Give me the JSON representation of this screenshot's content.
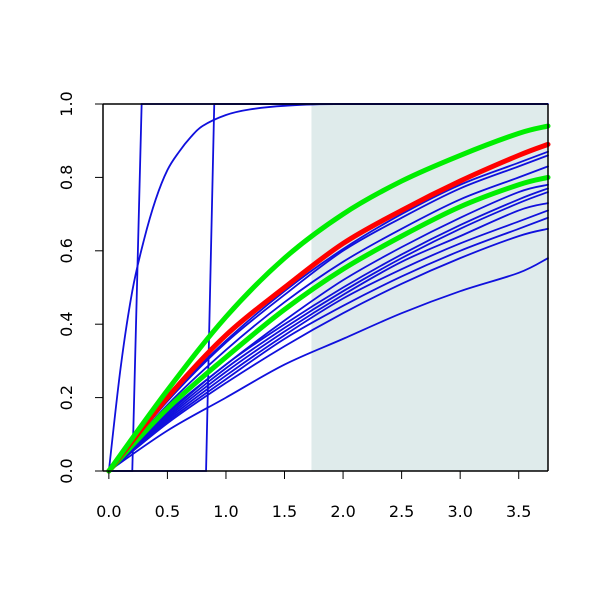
{
  "chart_data": {
    "type": "line",
    "title": "",
    "xlabel": "",
    "ylabel": "",
    "xlim": [
      -0.05,
      3.75
    ],
    "ylim": [
      0,
      1
    ],
    "x_ticks": [
      0,
      0.5,
      1,
      1.5,
      2,
      2.5,
      3,
      3.5
    ],
    "x_tick_labels": [
      "0.0",
      "0.5",
      "1.0",
      "1.5",
      "2.0",
      "2.5",
      "3.0",
      "3.5"
    ],
    "y_ticks": [
      0,
      0.2,
      0.4,
      0.6,
      0.8,
      1
    ],
    "y_tick_labels": [
      "0.0",
      "0.2",
      "0.4",
      "0.6",
      "0.8",
      "1.0"
    ],
    "grid": false,
    "shaded_region": {
      "x_from": 1.73,
      "x_to": 3.75,
      "y_from": 0,
      "y_to": 1,
      "color": "#dfebeb"
    },
    "colors": {
      "blue": "#1010dd",
      "red": "#ff0000",
      "green": "#00ee00"
    },
    "step_curves": [
      {
        "color": "blue",
        "step_x": 0.2,
        "rise_end_x": 0.28
      },
      {
        "color": "blue",
        "step_x": 0.83,
        "rise_end_x": 0.9
      }
    ],
    "series": [
      {
        "color": "blue",
        "width": 1.8,
        "x": [
          0,
          0.1,
          0.2,
          0.3,
          0.4,
          0.5,
          0.6,
          0.7,
          0.8,
          1.0,
          1.2,
          1.5,
          2.0,
          3.75
        ],
        "values": [
          0,
          0.28,
          0.49,
          0.63,
          0.74,
          0.82,
          0.87,
          0.91,
          0.94,
          0.97,
          0.985,
          0.995,
          1.0,
          1.0
        ]
      },
      {
        "color": "blue",
        "width": 1.8,
        "x": [
          0,
          0.5,
          1,
          1.5,
          2,
          2.5,
          3,
          3.5,
          3.75
        ],
        "values": [
          0,
          0.11,
          0.2,
          0.29,
          0.36,
          0.43,
          0.49,
          0.54,
          0.58
        ]
      },
      {
        "color": "blue",
        "width": 1.8,
        "x": [
          0,
          0.5,
          1,
          1.5,
          2,
          2.5,
          3,
          3.5,
          3.75
        ],
        "values": [
          0,
          0.13,
          0.24,
          0.34,
          0.43,
          0.51,
          0.58,
          0.64,
          0.66
        ]
      },
      {
        "color": "blue",
        "width": 1.8,
        "x": [
          0,
          0.5,
          1,
          1.5,
          2,
          2.5,
          3,
          3.5,
          3.75
        ],
        "values": [
          0,
          0.135,
          0.25,
          0.36,
          0.45,
          0.53,
          0.6,
          0.66,
          0.69
        ]
      },
      {
        "color": "blue",
        "width": 1.8,
        "x": [
          0,
          0.5,
          1,
          1.5,
          2,
          2.5,
          3,
          3.5,
          3.75
        ],
        "values": [
          0,
          0.14,
          0.26,
          0.37,
          0.47,
          0.55,
          0.62,
          0.68,
          0.71
        ]
      },
      {
        "color": "blue",
        "width": 1.8,
        "x": [
          0,
          0.5,
          1,
          1.5,
          2,
          2.5,
          3,
          3.5,
          3.75
        ],
        "values": [
          0,
          0.145,
          0.27,
          0.38,
          0.48,
          0.57,
          0.64,
          0.71,
          0.73
        ]
      },
      {
        "color": "blue",
        "width": 1.8,
        "x": [
          0,
          0.5,
          1,
          1.5,
          2,
          2.5,
          3,
          3.5,
          3.75
        ],
        "values": [
          0,
          0.15,
          0.28,
          0.39,
          0.49,
          0.58,
          0.66,
          0.73,
          0.76
        ]
      },
      {
        "color": "blue",
        "width": 1.8,
        "x": [
          0,
          0.5,
          1,
          1.5,
          2,
          2.5,
          3,
          3.5,
          3.75
        ],
        "values": [
          0,
          0.155,
          0.29,
          0.4,
          0.5,
          0.59,
          0.67,
          0.74,
          0.77
        ]
      },
      {
        "color": "blue",
        "width": 1.8,
        "x": [
          0,
          0.5,
          1,
          1.5,
          2,
          2.5,
          3,
          3.5,
          3.75
        ],
        "values": [
          0,
          0.16,
          0.29,
          0.41,
          0.52,
          0.61,
          0.69,
          0.76,
          0.78
        ]
      },
      {
        "color": "blue",
        "width": 1.8,
        "x": [
          0,
          0.5,
          1,
          1.5,
          2,
          2.5,
          3,
          3.5,
          3.75
        ],
        "values": [
          0,
          0.18,
          0.33,
          0.46,
          0.57,
          0.66,
          0.74,
          0.8,
          0.83
        ]
      },
      {
        "color": "blue",
        "width": 1.8,
        "x": [
          0,
          0.5,
          1,
          1.5,
          2,
          2.5,
          3,
          3.5,
          3.75
        ],
        "values": [
          0,
          0.19,
          0.35,
          0.48,
          0.6,
          0.69,
          0.77,
          0.83,
          0.86
        ]
      },
      {
        "color": "blue",
        "width": 1.8,
        "x": [
          0,
          0.5,
          1,
          1.5,
          2,
          2.5,
          3,
          3.5,
          3.75
        ],
        "values": [
          0,
          0.195,
          0.355,
          0.49,
          0.605,
          0.7,
          0.78,
          0.84,
          0.87
        ]
      },
      {
        "color": "green",
        "width": 5,
        "x": [
          0,
          0.5,
          1,
          1.5,
          2,
          2.5,
          3,
          3.5,
          3.75
        ],
        "values": [
          0,
          0.17,
          0.31,
          0.44,
          0.55,
          0.64,
          0.72,
          0.78,
          0.8
        ]
      },
      {
        "color": "red",
        "width": 5,
        "x": [
          0,
          0.5,
          1,
          1.5,
          2,
          2.5,
          3,
          3.5,
          3.75
        ],
        "values": [
          0,
          0.2,
          0.37,
          0.5,
          0.62,
          0.71,
          0.79,
          0.86,
          0.89
        ]
      },
      {
        "color": "green",
        "width": 5,
        "x": [
          0,
          0.5,
          1,
          1.5,
          2,
          2.5,
          3,
          3.5,
          3.75
        ],
        "values": [
          0,
          0.22,
          0.42,
          0.58,
          0.7,
          0.79,
          0.86,
          0.92,
          0.94
        ]
      }
    ]
  }
}
